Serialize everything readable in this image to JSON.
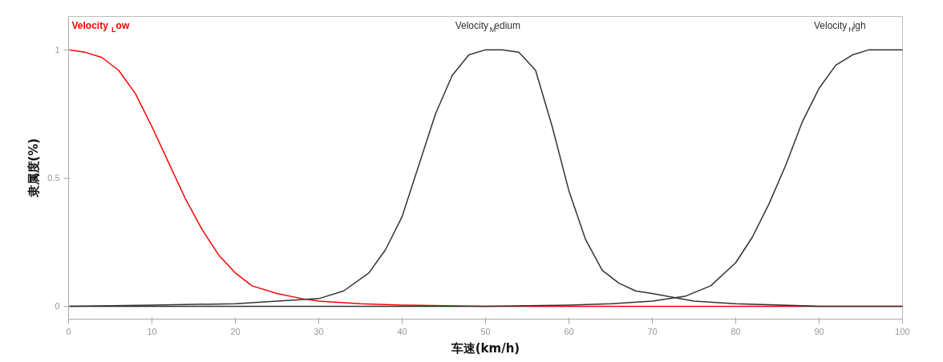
{
  "chart_data": {
    "type": "line",
    "xlabel": "车速(km/h)",
    "ylabel": "隶属度(%)",
    "xlim": [
      0,
      100
    ],
    "ylim": [
      -0.05,
      1.13
    ],
    "xticks": [
      0,
      10,
      20,
      30,
      40,
      50,
      60,
      70,
      80,
      90,
      100
    ],
    "yticks": [
      0,
      0.5,
      1
    ],
    "grid": false,
    "series": [
      {
        "name": "Velocity$_{L}$ow",
        "color": "#ff0000",
        "x": [
          0,
          2,
          4,
          6,
          8,
          10,
          12,
          14,
          16,
          18,
          20,
          22,
          25,
          28,
          30,
          35,
          40,
          50,
          60,
          70,
          80,
          90,
          100
        ],
        "values": [
          1,
          0.99,
          0.97,
          0.92,
          0.83,
          0.7,
          0.56,
          0.42,
          0.3,
          0.2,
          0.13,
          0.08,
          0.05,
          0.03,
          0.02,
          0.01,
          0.005,
          0,
          0,
          0,
          0,
          0,
          0
        ]
      },
      {
        "name": "Velocity$_{M}$edium",
        "color": "#333333",
        "x": [
          0,
          10,
          20,
          25,
          30,
          33,
          36,
          38,
          40,
          42,
          44,
          46,
          48,
          50,
          52,
          54,
          56,
          58,
          60,
          62,
          64,
          66,
          68,
          70,
          75,
          80,
          90,
          100
        ],
        "values": [
          0,
          0.005,
          0.01,
          0.02,
          0.03,
          0.06,
          0.13,
          0.22,
          0.35,
          0.55,
          0.75,
          0.9,
          0.98,
          1,
          1,
          0.99,
          0.92,
          0.7,
          0.45,
          0.26,
          0.14,
          0.09,
          0.06,
          0.05,
          0.02,
          0.01,
          0,
          0
        ]
      },
      {
        "name": "Velocity$_{H}$igh",
        "color": "#333333",
        "x": [
          0,
          50,
          60,
          65,
          70,
          74,
          77,
          80,
          82,
          84,
          86,
          88,
          90,
          92,
          94,
          96,
          100
        ],
        "values": [
          0,
          0,
          0.005,
          0.01,
          0.02,
          0.04,
          0.08,
          0.17,
          0.27,
          0.4,
          0.55,
          0.72,
          0.85,
          0.94,
          0.98,
          1,
          1
        ]
      }
    ]
  }
}
